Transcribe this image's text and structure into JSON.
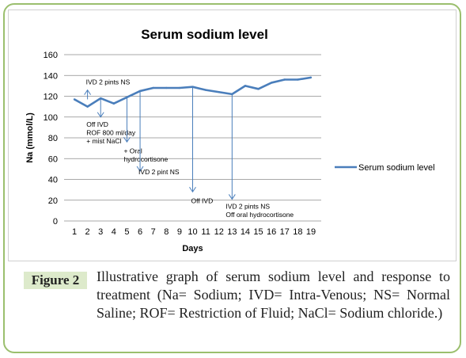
{
  "figure": {
    "label": "Figure 2",
    "caption": "Illustrative graph of serum sodium level and response to treatment (Na= Sodium; IVD= Intra-Venous; NS= Normal Saline; ROF= Restriction of Fluid; NaCl= Sodium chloride.)"
  },
  "chart_data": {
    "type": "line",
    "title": "Serum sodium level",
    "xlabel": "Days",
    "ylabel": "Na (mmol/L)",
    "ylim": [
      0,
      160
    ],
    "yticks": [
      0,
      20,
      40,
      60,
      80,
      100,
      120,
      140,
      160
    ],
    "x": [
      1,
      2,
      3,
      4,
      5,
      6,
      7,
      8,
      9,
      10,
      11,
      12,
      13,
      14,
      15,
      16,
      17,
      18,
      19
    ],
    "grid": true,
    "legend_position": "right",
    "colors": {
      "series": "#4a7ebb",
      "arrow": "#4a7ebb",
      "grid": "#8c8c8c"
    },
    "series": [
      {
        "name": "Serum sodium level",
        "values": [
          117,
          110,
          118,
          113,
          119,
          125,
          128,
          128,
          128,
          129,
          126,
          124,
          122,
          130,
          127,
          133,
          136,
          136,
          138
        ]
      }
    ],
    "annotations": [
      {
        "x": 2,
        "y": 117,
        "direction": "up",
        "to_y": 126,
        "lines": [
          "IVD 2 pints NS"
        ]
      },
      {
        "x": 3,
        "y": 118,
        "direction": "down",
        "to_y": 100,
        "lines": [
          "Off IVD",
          "ROF 800 ml/day",
          "+ mist NaCl"
        ]
      },
      {
        "x": 5,
        "y": 119,
        "direction": "down",
        "to_y": 76,
        "lines": [
          "+ Oral",
          "hydrocortisone"
        ]
      },
      {
        "x": 6,
        "y": 125,
        "direction": "down",
        "to_y": 48,
        "lines": [
          "IVD 2 pint NS"
        ]
      },
      {
        "x": 10,
        "y": 129,
        "direction": "down",
        "to_y": 28,
        "lines": [
          "Off IVD"
        ]
      },
      {
        "x": 13,
        "y": 122,
        "direction": "down",
        "to_y": 21,
        "lines": [
          "IVD 2 pints NS",
          "Off oral hydrocortisone"
        ]
      }
    ]
  }
}
